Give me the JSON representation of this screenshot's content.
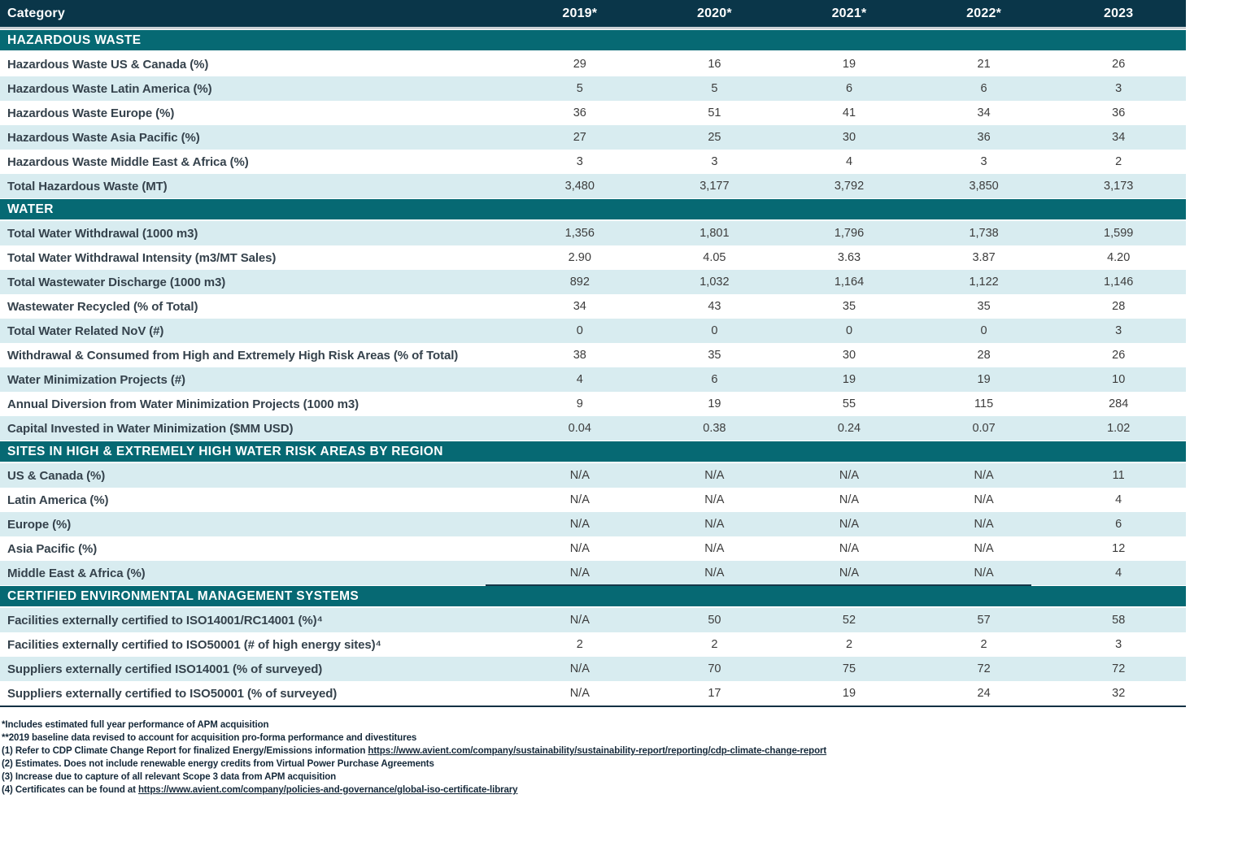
{
  "colors": {
    "header_bg": "#0a3649",
    "section_bg": "#066973",
    "shaded_row": "#d8ecf0",
    "table_border": "#123043",
    "label_text": "#35424c",
    "value_text": "#3c3c3c",
    "footnote_text": "#15293a"
  },
  "table": {
    "header": {
      "category": "Category",
      "years": [
        "2019*",
        "2020*",
        "2021*",
        "2022*",
        "2023"
      ]
    },
    "sections": [
      {
        "title": "HAZARDOUS WASTE",
        "startShaded": false,
        "partialTopLine": false,
        "rows": [
          {
            "label": "Hazardous Waste US & Canada (%)",
            "values": [
              "29",
              "16",
              "19",
              "21",
              "26"
            ]
          },
          {
            "label": "Hazardous Waste Latin America (%)",
            "values": [
              "5",
              "5",
              "6",
              "6",
              "3"
            ]
          },
          {
            "label": "Hazardous Waste Europe (%)",
            "values": [
              "36",
              "51",
              "41",
              "34",
              "36"
            ]
          },
          {
            "label": "Hazardous Waste Asia Pacific (%)",
            "values": [
              "27",
              "25",
              "30",
              "36",
              "34"
            ]
          },
          {
            "label": "Hazardous Waste Middle East & Africa (%)",
            "values": [
              "3",
              "3",
              "4",
              "3",
              "2"
            ]
          },
          {
            "label": "Total Hazardous Waste (MT)",
            "values": [
              "3,480",
              "3,177",
              "3,792",
              "3,850",
              "3,173"
            ]
          }
        ]
      },
      {
        "title": "WATER",
        "startShaded": true,
        "partialTopLine": false,
        "rows": [
          {
            "label": "Total Water Withdrawal (1000 m3)",
            "values": [
              "1,356",
              "1,801",
              "1,796",
              "1,738",
              "1,599"
            ]
          },
          {
            "label": "Total Water Withdrawal Intensity (m3/MT Sales)",
            "values": [
              "2.90",
              "4.05",
              "3.63",
              "3.87",
              "4.20"
            ]
          },
          {
            "label": "Total Wastewater Discharge (1000 m3)",
            "values": [
              "892",
              "1,032",
              "1,164",
              "1,122",
              "1,146"
            ]
          },
          {
            "label": "Wastewater Recycled (% of Total)",
            "values": [
              "34",
              "43",
              "35",
              "35",
              "28"
            ]
          },
          {
            "label": "Total Water Related NoV (#)",
            "values": [
              "0",
              "0",
              "0",
              "0",
              "3"
            ]
          },
          {
            "label": "Withdrawal & Consumed from High and Extremely High Risk Areas (% of Total)",
            "values": [
              "38",
              "35",
              "30",
              "28",
              "26"
            ]
          },
          {
            "label": "Water Minimization Projects (#)",
            "values": [
              "4",
              "6",
              "19",
              "19",
              "10"
            ]
          },
          {
            "label": "Annual Diversion from Water Minimization Projects (1000 m3)",
            "values": [
              "9",
              "19",
              "55",
              "115",
              "284"
            ]
          },
          {
            "label": "Capital Invested in Water Minimization ($MM USD)",
            "values": [
              "0.04",
              "0.38",
              "0.24",
              "0.07",
              "1.02"
            ]
          }
        ]
      },
      {
        "title": "SITES IN HIGH & EXTREMELY HIGH WATER RISK AREAS BY REGION",
        "startShaded": true,
        "partialTopLine": false,
        "rows": [
          {
            "label": "US & Canada (%)",
            "values": [
              "N/A",
              "N/A",
              "N/A",
              "N/A",
              "11"
            ]
          },
          {
            "label": "Latin America (%)",
            "values": [
              "N/A",
              "N/A",
              "N/A",
              "N/A",
              "4"
            ]
          },
          {
            "label": "Europe (%)",
            "values": [
              "N/A",
              "N/A",
              "N/A",
              "N/A",
              "6"
            ]
          },
          {
            "label": "Asia Pacific (%)",
            "values": [
              "N/A",
              "N/A",
              "N/A",
              "N/A",
              "12"
            ]
          },
          {
            "label": "Middle East & Africa (%)",
            "values": [
              "N/A",
              "N/A",
              "N/A",
              "N/A",
              "4"
            ]
          }
        ]
      },
      {
        "title": "CERTIFIED ENVIRONMENTAL MANAGEMENT SYSTEMS",
        "startShaded": true,
        "partialTopLine": true,
        "rows": [
          {
            "label": "Facilities externally certified to ISO14001/RC14001 (%)⁴",
            "values": [
              "N/A",
              "50",
              "52",
              "57",
              "58"
            ]
          },
          {
            "label": "Facilities externally certified to ISO50001 (# of high energy sites)⁴",
            "values": [
              "2",
              "2",
              "2",
              "2",
              "3"
            ]
          },
          {
            "label": "Suppliers externally certified ISO14001 (% of surveyed)",
            "values": [
              "N/A",
              "70",
              "75",
              "72",
              "72"
            ]
          },
          {
            "label": "Suppliers externally certified to ISO50001 (% of surveyed)",
            "values": [
              "N/A",
              "17",
              "19",
              "24",
              "32"
            ]
          }
        ]
      }
    ]
  },
  "footnotes": [
    {
      "segments": [
        {
          "text": "*Includes estimated full year performance of APM acquisition",
          "link": false
        }
      ]
    },
    {
      "segments": [
        {
          "text": "**2019 baseline data revised to account for acquisition pro-forma performance and divestitures",
          "link": false
        }
      ]
    },
    {
      "segments": [
        {
          "text": "(1) Refer to CDP Climate Change Report for finalized Energy/Emissions information ",
          "link": false
        },
        {
          "text": "https://www.avient.com/company/sustainability/sustainability-report/reporting/cdp-climate-change-report",
          "link": true
        }
      ]
    },
    {
      "segments": [
        {
          "text": "(2) Estimates. Does not include renewable energy credits from Virtual Power Purchase Agreements",
          "link": false
        }
      ]
    },
    {
      "segments": [
        {
          "text": "(3) Increase due to capture of all relevant Scope 3 data from APM acquisition",
          "link": false
        }
      ]
    },
    {
      "segments": [
        {
          "text": "(4) Certificates can be found at ",
          "link": false
        },
        {
          "text": "https://www.avient.com/company/policies-and-governance/global-iso-certificate-library",
          "link": true
        }
      ]
    }
  ]
}
